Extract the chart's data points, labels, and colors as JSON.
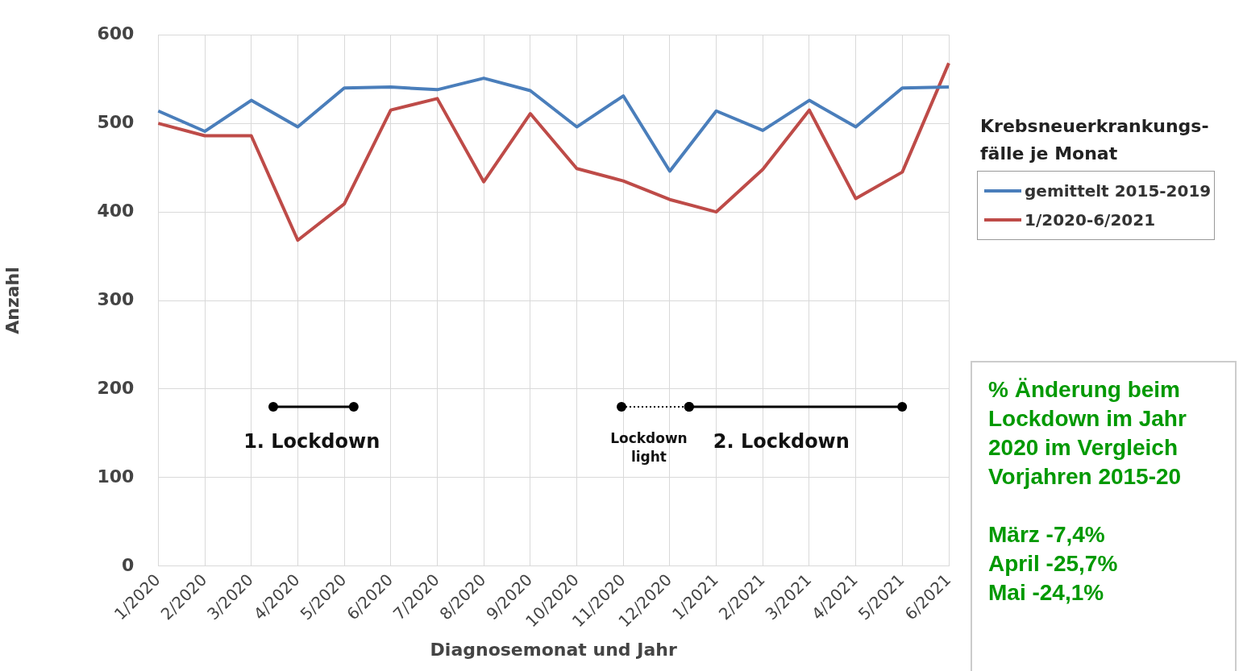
{
  "chart_data": {
    "type": "line",
    "xlabel": "Diagnosemonat und Jahr",
    "ylabel": "Anzahl",
    "legend_title": "Krebsneuerkrankungs-\nfälle je Monat",
    "categories": [
      "1/2020",
      "2/2020",
      "3/2020",
      "4/2020",
      "5/2020",
      "6/2020",
      "7/2020",
      "8/2020",
      "9/2020",
      "10/2020",
      "11/2020",
      "12/2020",
      "1/2021",
      "2/2021",
      "3/2021",
      "4/2021",
      "5/2021",
      "6/2021"
    ],
    "series": [
      {
        "name": "gemittelt 2015-2019",
        "color": "#4a7ebb",
        "values": [
          514,
          491,
          526,
          496,
          540,
          541,
          538,
          551,
          537,
          496,
          531,
          446,
          514,
          492,
          526,
          496,
          540,
          541
        ]
      },
      {
        "name": "1/2020-6/2021",
        "color": "#be4b48",
        "values": [
          500,
          486,
          486,
          368,
          409,
          515,
          528,
          434,
          511,
          449,
          435,
          414,
          400,
          448,
          515,
          415,
          445,
          568
        ]
      }
    ],
    "ylim": [
      0,
      600
    ],
    "yticks": [
      0,
      100,
      200,
      300,
      400,
      500,
      600
    ],
    "grid": true,
    "legend": "right",
    "marker": "none",
    "line_style": "solid",
    "annotations": [
      "1. Lockdown",
      "Lockdown\nlight",
      "2. Lockdown",
      "% Änderung beim\nLockdown im Jahr\n2020 im Vergleich\nVorjahren 2015-20\n\nMärz -7,4%\nApril -25,7%\nMai -24,1%"
    ]
  }
}
